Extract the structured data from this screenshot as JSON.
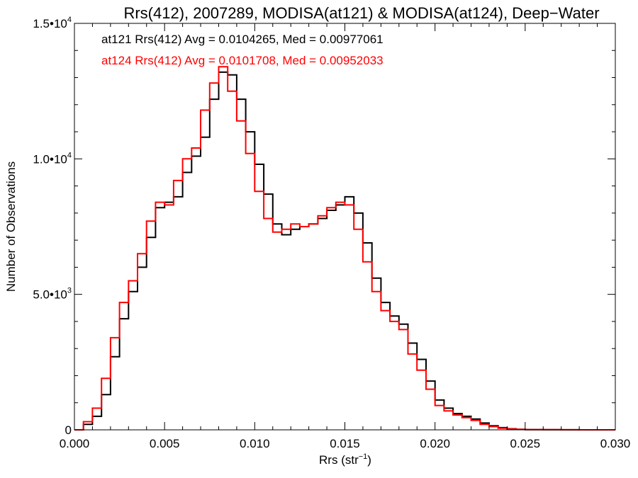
{
  "chart_data": {
    "type": "line",
    "subtype": "step-histogram",
    "title": "Rrs(412), 2007289, MODISA(at121) & MODISA(at124), Deep−Water",
    "xlabel_main": "Rrs (str",
    "xlabel_sup": "−1",
    "xlabel_end": ")",
    "ylabel": "Number of Observations",
    "xlim": [
      0.0,
      0.03
    ],
    "ylim": [
      0,
      15000
    ],
    "grid": false,
    "x_ticks": [
      "0.000",
      "0.005",
      "0.010",
      "0.015",
      "0.020",
      "0.025",
      "0.030"
    ],
    "y_ticks": [
      {
        "base": "0",
        "exp": ""
      },
      {
        "base": "5.0•10",
        "exp": "3"
      },
      {
        "base": "1.0•10",
        "exp": "4"
      },
      {
        "base": "1.5•10",
        "exp": "4"
      }
    ],
    "annotations": [
      {
        "text": "at121 Rrs(412) Avg = 0.0104265, Med = 0.00977061",
        "color": "#000000"
      },
      {
        "text": "at124 Rrs(412) Avg = 0.0101708, Med = 0.00952033",
        "color": "#ff0000"
      }
    ],
    "series": [
      {
        "name": "at121",
        "color": "#000000",
        "x": [
          0.0,
          0.0005,
          0.001,
          0.0015,
          0.002,
          0.0025,
          0.003,
          0.0035,
          0.004,
          0.0045,
          0.005,
          0.0055,
          0.006,
          0.0065,
          0.007,
          0.0075,
          0.008,
          0.0085,
          0.009,
          0.0095,
          0.01,
          0.0105,
          0.011,
          0.0115,
          0.012,
          0.0125,
          0.013,
          0.0135,
          0.014,
          0.0145,
          0.015,
          0.0155,
          0.016,
          0.0165,
          0.017,
          0.0175,
          0.018,
          0.0185,
          0.019,
          0.0195,
          0.02,
          0.0205,
          0.021,
          0.0215,
          0.022,
          0.0225,
          0.023,
          0.0235,
          0.024,
          0.0245,
          0.025,
          0.026,
          0.027,
          0.028,
          0.029,
          0.03
        ],
        "y": [
          0,
          200,
          500,
          1300,
          2700,
          4100,
          5100,
          6000,
          7100,
          8200,
          8400,
          8600,
          9500,
          10100,
          10800,
          12200,
          13200,
          13100,
          12200,
          11000,
          9800,
          8700,
          7600,
          7200,
          7400,
          7500,
          7600,
          7800,
          8100,
          8300,
          8600,
          8000,
          6900,
          5600,
          4700,
          4200,
          3900,
          3200,
          2600,
          1800,
          1100,
          800,
          600,
          500,
          400,
          250,
          150,
          80,
          40,
          20,
          10,
          5,
          2,
          1,
          0,
          0
        ]
      },
      {
        "name": "at124",
        "color": "#ff0000",
        "x": [
          0.0,
          0.0005,
          0.001,
          0.0015,
          0.002,
          0.0025,
          0.003,
          0.0035,
          0.004,
          0.0045,
          0.005,
          0.0055,
          0.006,
          0.0065,
          0.007,
          0.0075,
          0.008,
          0.0085,
          0.009,
          0.0095,
          0.01,
          0.0105,
          0.011,
          0.0115,
          0.012,
          0.0125,
          0.013,
          0.0135,
          0.014,
          0.0145,
          0.015,
          0.0155,
          0.016,
          0.0165,
          0.017,
          0.0175,
          0.018,
          0.0185,
          0.019,
          0.0195,
          0.02,
          0.0205,
          0.021,
          0.0215,
          0.022,
          0.0225,
          0.023,
          0.0235,
          0.024,
          0.0245,
          0.025,
          0.026,
          0.027,
          0.028,
          0.029,
          0.03
        ],
        "y": [
          0,
          300,
          800,
          1900,
          3400,
          4700,
          5500,
          6500,
          7700,
          8400,
          8300,
          9200,
          10000,
          10400,
          11800,
          12800,
          13400,
          12500,
          11400,
          10200,
          8800,
          7800,
          7300,
          7400,
          7600,
          7500,
          7600,
          7900,
          8200,
          8400,
          8300,
          7400,
          6200,
          5100,
          4400,
          4000,
          3700,
          2800,
          2200,
          1500,
          900,
          700,
          550,
          450,
          350,
          200,
          120,
          60,
          30,
          15,
          8,
          4,
          2,
          1,
          0,
          0
        ]
      }
    ]
  }
}
